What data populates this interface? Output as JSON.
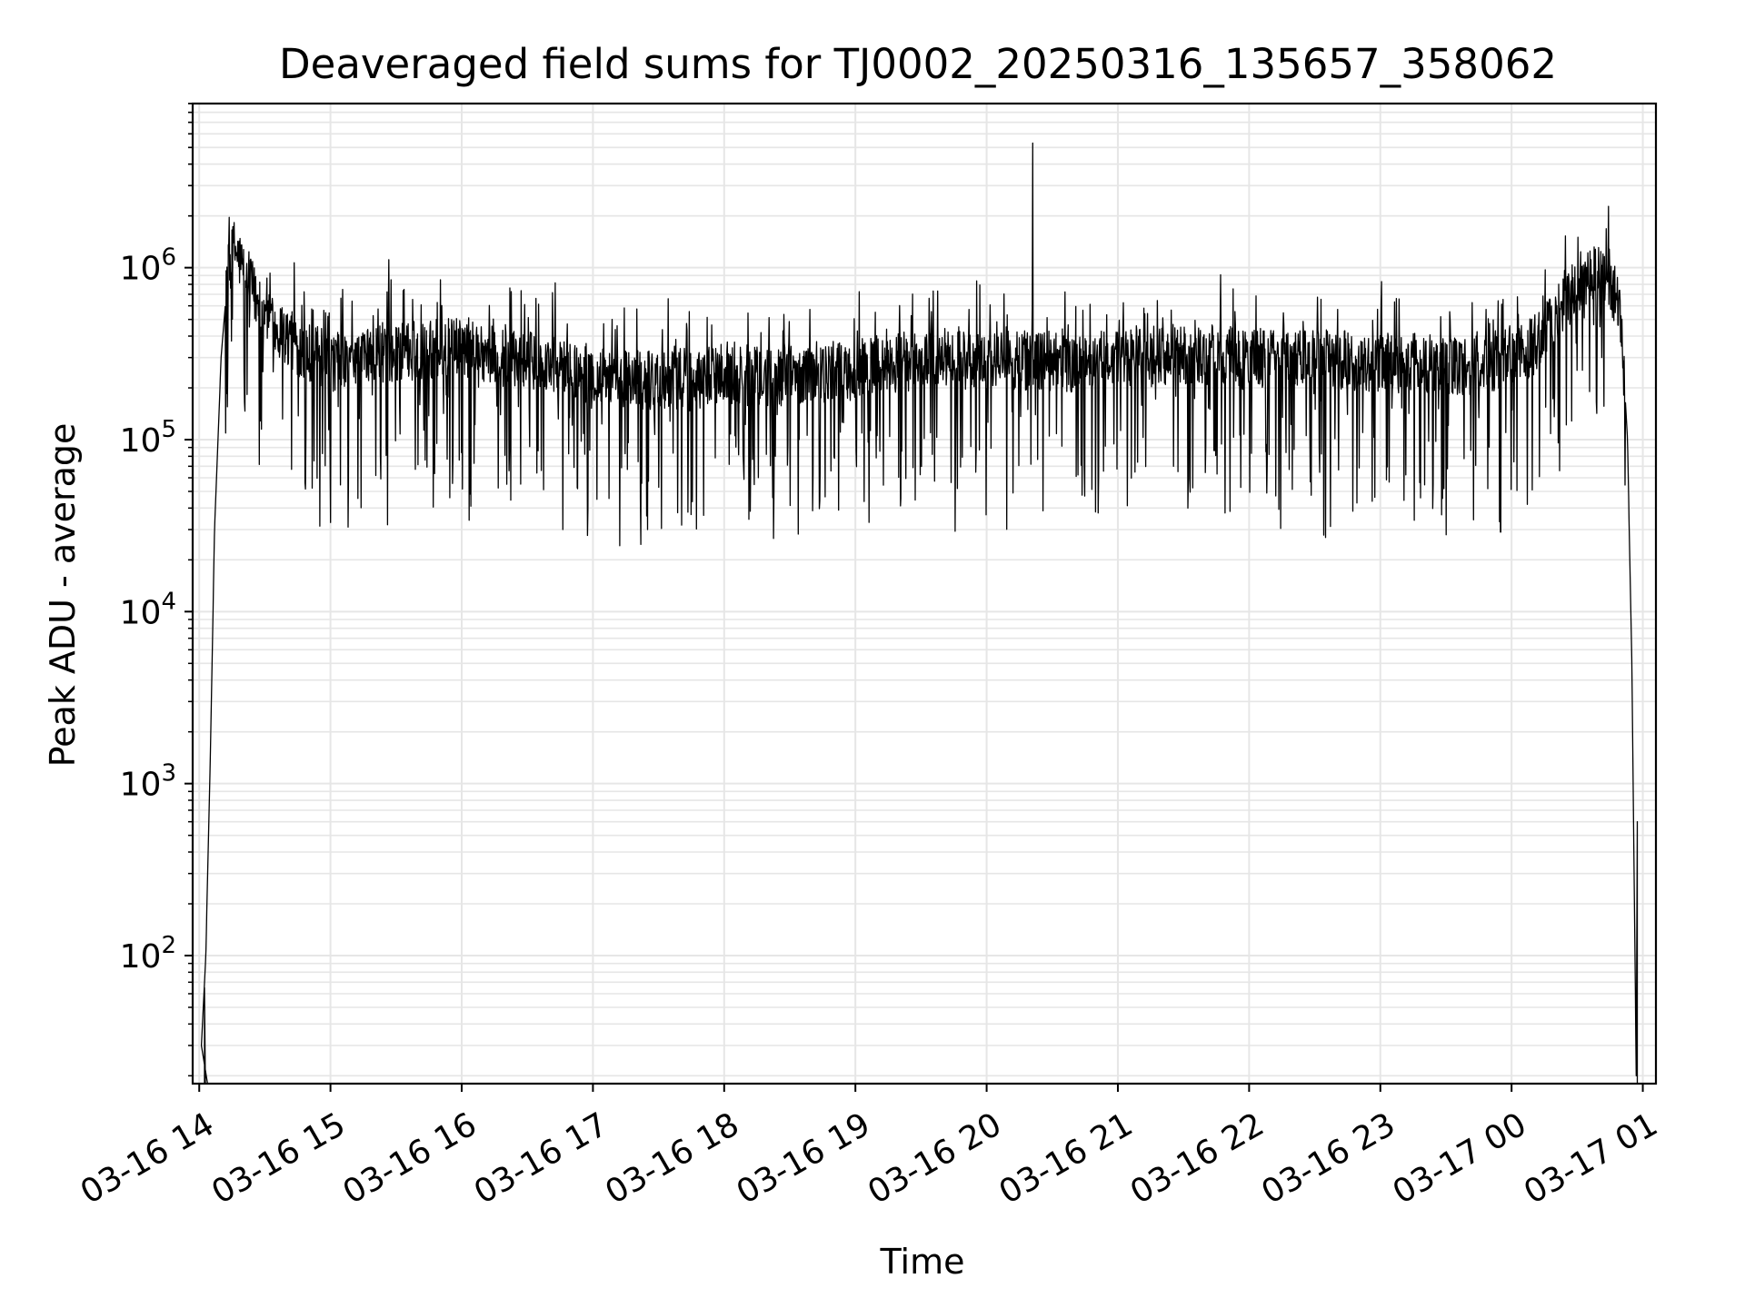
{
  "chart_data": {
    "type": "line",
    "title": "Deaveraged field sums for TJ0002_20250316_135657_358062",
    "xlabel": "Time",
    "ylabel": "Peak ADU - average",
    "x_scale": "time",
    "y_scale": "log",
    "xlim": [
      "2025-03-16T13:57:00",
      "2025-03-17T01:06:00"
    ],
    "ylim": [
      18,
      9000000
    ],
    "grid": true,
    "legend": "none",
    "line_color": "#000000",
    "x_ticks": [
      {
        "value": "2025-03-16T14:00:00",
        "label": "03-16 14"
      },
      {
        "value": "2025-03-16T15:00:00",
        "label": "03-16 15"
      },
      {
        "value": "2025-03-16T16:00:00",
        "label": "03-16 16"
      },
      {
        "value": "2025-03-16T17:00:00",
        "label": "03-16 17"
      },
      {
        "value": "2025-03-16T18:00:00",
        "label": "03-16 18"
      },
      {
        "value": "2025-03-16T19:00:00",
        "label": "03-16 19"
      },
      {
        "value": "2025-03-16T20:00:00",
        "label": "03-16 20"
      },
      {
        "value": "2025-03-16T21:00:00",
        "label": "03-16 21"
      },
      {
        "value": "2025-03-16T22:00:00",
        "label": "03-16 22"
      },
      {
        "value": "2025-03-16T23:00:00",
        "label": "03-16 23"
      },
      {
        "value": "2025-03-17T00:00:00",
        "label": "03-17 00"
      },
      {
        "value": "2025-03-17T01:00:00",
        "label": "03-17 01"
      }
    ],
    "y_ticks": [
      {
        "value": 100,
        "base": "10",
        "exp": "2"
      },
      {
        "value": 1000,
        "base": "10",
        "exp": "3"
      },
      {
        "value": 10000,
        "base": "10",
        "exp": "4"
      },
      {
        "value": 100000,
        "base": "10",
        "exp": "5"
      },
      {
        "value": 1000000,
        "base": "10",
        "exp": "6"
      }
    ],
    "series": [
      {
        "x": [
          "2025-03-16T14:01:00",
          "2025-03-16T14:03:00",
          "2025-03-16T14:05:00",
          "2025-03-16T14:07:00",
          "2025-03-16T14:10:00",
          "2025-03-16T14:13:00",
          "2025-03-16T14:16:00",
          "2025-03-16T14:20:00",
          "2025-03-16T14:30:00",
          "2025-03-16T14:45:00",
          "2025-03-16T15:00:00",
          "2025-03-16T15:20:00",
          "2025-03-16T15:40:00",
          "2025-03-16T16:00:00",
          "2025-03-16T16:20:00",
          "2025-03-16T16:40:00",
          "2025-03-16T17:00:00",
          "2025-03-16T17:20:00",
          "2025-03-16T17:40:00",
          "2025-03-16T18:00:00",
          "2025-03-16T18:20:00",
          "2025-03-16T18:40:00",
          "2025-03-16T19:00:00",
          "2025-03-16T19:20:00",
          "2025-03-16T19:40:00",
          "2025-03-16T20:00:00",
          "2025-03-16T20:20:00",
          "2025-03-16T20:40:00",
          "2025-03-16T21:00:00",
          "2025-03-16T21:20:00",
          "2025-03-16T21:40:00",
          "2025-03-16T22:00:00",
          "2025-03-16T22:20:00",
          "2025-03-16T22:40:00",
          "2025-03-16T23:00:00",
          "2025-03-16T23:20:00",
          "2025-03-16T23:40:00",
          "2025-03-17T00:00:00",
          "2025-03-17T00:10:00",
          "2025-03-17T00:20:00",
          "2025-03-17T00:30:00",
          "2025-03-17T00:38:00",
          "2025-03-17T00:45:00",
          "2025-03-17T00:50:00",
          "2025-03-17T00:53:00",
          "2025-03-17T00:55:00",
          "2025-03-17T00:56:00",
          "2025-03-17T00:57:00"
        ],
        "y": [
          30,
          100,
          1300,
          30000,
          300000,
          900000,
          1300000,
          1000000,
          500000,
          350000,
          280000,
          320000,
          330000,
          350000,
          300000,
          270000,
          240000,
          220000,
          230000,
          240000,
          230000,
          240000,
          260000,
          280000,
          300000,
          280000,
          290000,
          280000,
          290000,
          300000,
          310000,
          300000,
          300000,
          290000,
          280000,
          280000,
          270000,
          300000,
          350000,
          500000,
          800000,
          950000,
          850000,
          500000,
          100000,
          5000,
          300,
          20
        ]
      }
    ],
    "spikes": [
      {
        "x": "2025-03-16T20:21:00",
        "y": 5300000
      }
    ],
    "dips": [
      {
        "x": "2025-03-16T15:00:00",
        "y": 33000
      },
      {
        "x": "2025-03-16T15:08:00",
        "y": 31000
      },
      {
        "x": "2025-03-16T15:26:00",
        "y": 32000
      },
      {
        "x": "2025-03-16T17:25:00",
        "y": 30000
      },
      {
        "x": "2025-03-16T22:35:00",
        "y": 27000
      },
      {
        "x": "2025-03-16T23:30:00",
        "y": 28000
      },
      {
        "x": "2025-03-16T23:55:00",
        "y": 29000
      }
    ]
  }
}
